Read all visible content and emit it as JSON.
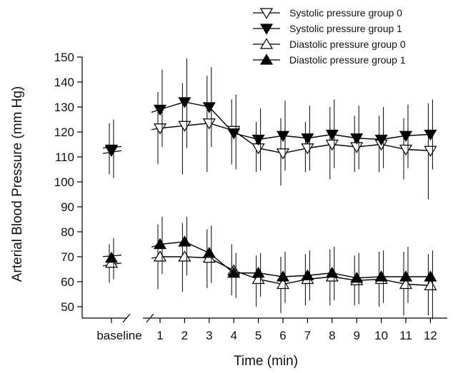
{
  "chart_data": {
    "type": "line",
    "xlabel": "Time (min)",
    "ylabel": "Arterial Blood Pressure (mm Hg)",
    "ylim": [
      45,
      150
    ],
    "yticks": [
      50,
      60,
      70,
      80,
      90,
      100,
      110,
      120,
      130,
      140,
      150
    ],
    "categories": [
      "baseline",
      "1",
      "2",
      "3",
      "4",
      "5",
      "6",
      "7",
      "8",
      "9",
      "10",
      "11",
      "12"
    ],
    "axis_break_after": "baseline",
    "grid": false,
    "legend_position": "top-right",
    "series": [
      {
        "name": "Systolic pressure group 0",
        "marker": "triangle-down",
        "fill": "open",
        "values": [
          112.5,
          121.5,
          122.5,
          123.5,
          120.5,
          113.5,
          111.5,
          113.5,
          115,
          114,
          115,
          113,
          112.5
        ],
        "err_low": [
          103,
          107,
          103,
          104,
          107,
          104,
          98.5,
          104,
          101,
          104,
          104,
          101,
          93
        ],
        "err_high": [
          123.5,
          136,
          139.5,
          142.5,
          133,
          124,
          125.5,
          124,
          130,
          126.5,
          126.5,
          125.5,
          131.5
        ]
      },
      {
        "name": "Systolic pressure group 1",
        "marker": "triangle-down",
        "fill": "filled",
        "values": [
          113,
          129,
          132,
          130,
          119.5,
          117,
          118.5,
          117.5,
          119,
          117.5,
          117,
          118.5,
          119
        ],
        "err_low": [
          101.5,
          114,
          113.5,
          114,
          105,
          104.5,
          104.5,
          104.5,
          105.5,
          105,
          105.5,
          105.5,
          105
        ],
        "err_high": [
          125,
          145,
          149.5,
          146,
          135,
          129.5,
          132.5,
          130.5,
          133,
          130.5,
          130,
          131,
          133
        ]
      },
      {
        "name": "Diastolic pressure group 0",
        "marker": "triangle-up",
        "fill": "open",
        "values": [
          67.5,
          70,
          70,
          69.5,
          64.5,
          61,
          59,
          61,
          62,
          60.5,
          61,
          59,
          58.5
        ],
        "err_low": [
          59.5,
          57,
          56,
          57.5,
          54.5,
          50,
          47.5,
          50.5,
          50.5,
          50.5,
          50,
          46.5,
          46.5
        ],
        "err_high": [
          75,
          83,
          83.5,
          81,
          75,
          70.5,
          70,
          71,
          73,
          70.5,
          72,
          72,
          71
        ]
      },
      {
        "name": "Diastolic pressure group 1",
        "marker": "triangle-up",
        "fill": "filled",
        "values": [
          69.5,
          75,
          76,
          71.5,
          63.5,
          63.5,
          62,
          62.5,
          63.5,
          61.5,
          62,
          62,
          62
        ],
        "err_low": [
          61,
          63,
          62.5,
          59.5,
          53.5,
          54,
          51.5,
          52.5,
          52.5,
          51,
          51.5,
          51.5,
          45
        ],
        "err_high": [
          77.5,
          86,
          86,
          82.5,
          71.5,
          71.5,
          72,
          72.5,
          74,
          71.5,
          72.5,
          74,
          72.5
        ]
      }
    ]
  }
}
